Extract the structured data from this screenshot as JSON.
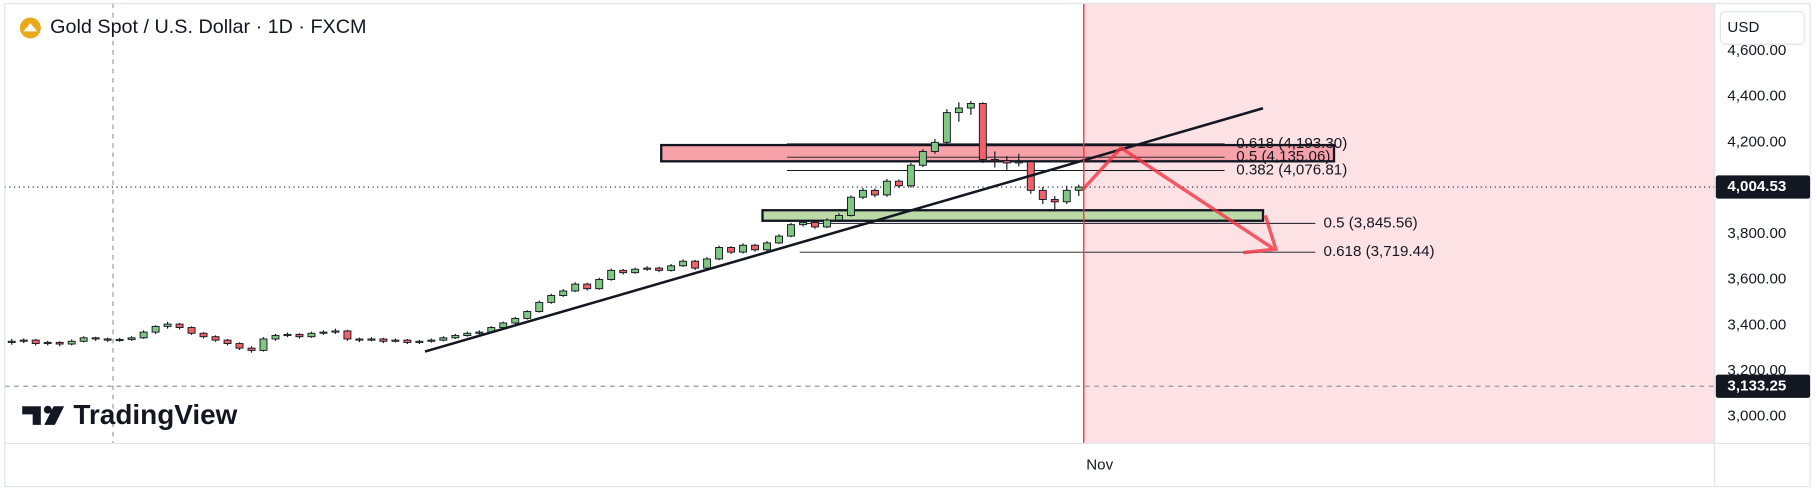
{
  "chart_data": {
    "type": "candlestick",
    "title": "Gold Spot / U.S. Dollar · 1D · FXCM",
    "currency": "USD",
    "brand": "TradingView",
    "up_color": "#81c784",
    "down_color": "#f0626a",
    "ylim": [
      2883,
      4797
    ],
    "yticks": [
      {
        "value": 3000,
        "label": "3,000.00"
      },
      {
        "value": 3200,
        "label": "3,200.00"
      },
      {
        "value": 3400,
        "label": "3,400.00"
      },
      {
        "value": 3600,
        "label": "3,600.00"
      },
      {
        "value": 3800,
        "label": "3,800.00"
      },
      {
        "value": 4000,
        "label": "4,000.00"
      },
      {
        "value": 4200,
        "label": "4,200.00"
      },
      {
        "value": 4400,
        "label": "4,400.00"
      },
      {
        "value": 4600,
        "label": "4,600.00"
      }
    ],
    "last_price": {
      "value": 4004.53,
      "label": "4,004.53"
    },
    "crosshair_price": {
      "value": 3133.25,
      "label": "3,133.25"
    },
    "categories": [
      null,
      null,
      null,
      null,
      null,
      null,
      null,
      null,
      null,
      null,
      null,
      null,
      null,
      null,
      null,
      null,
      null,
      null,
      null,
      null,
      null,
      null,
      null,
      null,
      null,
      null,
      null,
      null,
      null,
      null,
      null,
      null,
      null,
      null,
      null,
      null,
      null,
      null,
      null,
      null,
      null,
      null,
      null,
      null,
      null,
      null,
      null,
      null,
      null,
      null,
      null,
      null,
      null,
      null,
      null,
      null,
      null,
      null,
      null,
      null,
      null,
      null,
      null,
      null,
      null,
      null,
      null,
      null,
      null,
      null,
      null,
      null,
      null,
      null,
      null,
      null,
      null,
      null,
      null,
      null,
      null,
      null,
      null,
      null,
      null,
      null,
      null,
      null,
      null,
      "Nov"
    ],
    "ohlc": [
      [
        3325,
        3340,
        3315,
        3330
      ],
      [
        3330,
        3342,
        3322,
        3335
      ],
      [
        3335,
        3340,
        3312,
        3320
      ],
      [
        3320,
        3332,
        3312,
        3325
      ],
      [
        3325,
        3330,
        3308,
        3318
      ],
      [
        3318,
        3338,
        3312,
        3330
      ],
      [
        3330,
        3352,
        3325,
        3345
      ],
      [
        3345,
        3350,
        3332,
        3340
      ],
      [
        3340,
        3346,
        3328,
        3335
      ],
      [
        3335,
        3345,
        3328,
        3338
      ],
      [
        3338,
        3352,
        3332,
        3345
      ],
      [
        3345,
        3378,
        3340,
        3370
      ],
      [
        3370,
        3400,
        3362,
        3395
      ],
      [
        3395,
        3415,
        3385,
        3405
      ],
      [
        3405,
        3410,
        3382,
        3390
      ],
      [
        3390,
        3395,
        3358,
        3365
      ],
      [
        3365,
        3370,
        3342,
        3350
      ],
      [
        3350,
        3356,
        3328,
        3335
      ],
      [
        3335,
        3340,
        3312,
        3320
      ],
      [
        3320,
        3325,
        3292,
        3300
      ],
      [
        3300,
        3308,
        3280,
        3290
      ],
      [
        3290,
        3348,
        3285,
        3340
      ],
      [
        3340,
        3362,
        3332,
        3355
      ],
      [
        3355,
        3368,
        3348,
        3360
      ],
      [
        3360,
        3365,
        3342,
        3350
      ],
      [
        3350,
        3372,
        3345,
        3365
      ],
      [
        3365,
        3378,
        3358,
        3370
      ],
      [
        3370,
        3385,
        3362,
        3375
      ],
      [
        3375,
        3380,
        3332,
        3340
      ],
      [
        3340,
        3346,
        3326,
        3335
      ],
      [
        3335,
        3348,
        3330,
        3340
      ],
      [
        3340,
        3345,
        3322,
        3330
      ],
      [
        3330,
        3342,
        3325,
        3335
      ],
      [
        3335,
        3340,
        3318,
        3325
      ],
      [
        3325,
        3336,
        3318,
        3330
      ],
      [
        3330,
        3342,
        3324,
        3335
      ],
      [
        3335,
        3352,
        3330,
        3345
      ],
      [
        3345,
        3362,
        3340,
        3355
      ],
      [
        3355,
        3372,
        3350,
        3365
      ],
      [
        3365,
        3378,
        3360,
        3370
      ],
      [
        3370,
        3396,
        3365,
        3390
      ],
      [
        3390,
        3416,
        3385,
        3410
      ],
      [
        3410,
        3436,
        3405,
        3430
      ],
      [
        3430,
        3466,
        3425,
        3460
      ],
      [
        3460,
        3508,
        3455,
        3500
      ],
      [
        3500,
        3538,
        3494,
        3530
      ],
      [
        3530,
        3558,
        3524,
        3550
      ],
      [
        3550,
        3588,
        3545,
        3580
      ],
      [
        3580,
        3586,
        3552,
        3560
      ],
      [
        3560,
        3608,
        3555,
        3600
      ],
      [
        3600,
        3648,
        3595,
        3640
      ],
      [
        3640,
        3646,
        3622,
        3630
      ],
      [
        3630,
        3652,
        3625,
        3645
      ],
      [
        3645,
        3658,
        3638,
        3650
      ],
      [
        3650,
        3656,
        3632,
        3640
      ],
      [
        3640,
        3668,
        3635,
        3660
      ],
      [
        3660,
        3688,
        3655,
        3680
      ],
      [
        3680,
        3686,
        3642,
        3650
      ],
      [
        3650,
        3698,
        3645,
        3690
      ],
      [
        3690,
        3748,
        3685,
        3740
      ],
      [
        3740,
        3746,
        3712,
        3720
      ],
      [
        3720,
        3758,
        3714,
        3750
      ],
      [
        3750,
        3756,
        3722,
        3730
      ],
      [
        3730,
        3768,
        3725,
        3760
      ],
      [
        3760,
        3798,
        3755,
        3790
      ],
      [
        3790,
        3848,
        3785,
        3840
      ],
      [
        3840,
        3858,
        3832,
        3850
      ],
      [
        3850,
        3856,
        3822,
        3830
      ],
      [
        3830,
        3868,
        3825,
        3860
      ],
      [
        3860,
        3890,
        3852,
        3880
      ],
      [
        3880,
        3968,
        3875,
        3960
      ],
      [
        3960,
        4000,
        3952,
        3990
      ],
      [
        3990,
        3998,
        3960,
        3970
      ],
      [
        3970,
        4040,
        3962,
        4030
      ],
      [
        4030,
        4038,
        4000,
        4010
      ],
      [
        4010,
        4110,
        4002,
        4100
      ],
      [
        4100,
        4170,
        4092,
        4160
      ],
      [
        4160,
        4215,
        4150,
        4200
      ],
      [
        4200,
        4345,
        4190,
        4330
      ],
      [
        4330,
        4375,
        4290,
        4350
      ],
      [
        4350,
        4381,
        4320,
        4370
      ],
      [
        4370,
        4375,
        4110,
        4125
      ],
      [
        4125,
        4160,
        4090,
        4120
      ],
      [
        4120,
        4140,
        4080,
        4110
      ],
      [
        4110,
        4150,
        4095,
        4115
      ],
      [
        4115,
        4120,
        3975,
        3990
      ],
      [
        3990,
        4005,
        3930,
        3950
      ],
      [
        3950,
        3965,
        3900,
        3940
      ],
      [
        3940,
        4010,
        3930,
        3990
      ],
      [
        3990,
        4015,
        3965,
        4004.53
      ]
    ],
    "zones": [
      {
        "top": 4188,
        "bottom": 4117,
        "color": "#f7a1a8"
      },
      {
        "top": 3903,
        "bottom": 3857,
        "color": "#bcd9a8"
      }
    ],
    "trendline": {
      "from": 3285,
      "to": 4349
    },
    "fib_upper": [
      {
        "value": 4193.3,
        "label": "0.618 (4,193.30)"
      },
      {
        "value": 4135.06,
        "label": "0.5 (4,135.06)"
      },
      {
        "value": 4076.81,
        "label": "0.382 (4,076.81)"
      }
    ],
    "fib_lower": [
      {
        "value": 3845.56,
        "label": "0.5 (3,845.56)"
      },
      {
        "value": 3719.44,
        "label": "0.618 (3,719.44)"
      }
    ]
  }
}
